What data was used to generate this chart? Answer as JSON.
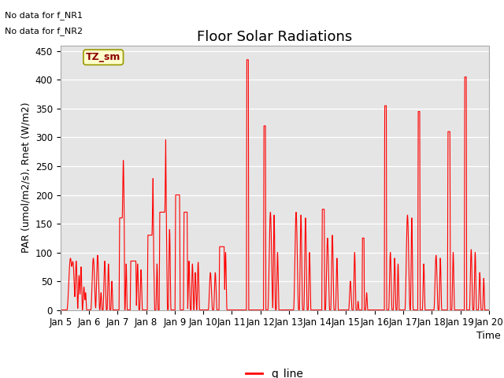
{
  "title": "Floor Solar Radiations",
  "xlabel": "Time",
  "ylabel": "PAR (umol/m2/s), Rnet (W/m2)",
  "text_no_data1": "No data for f_NR1",
  "text_no_data2": "No data for f_NR2",
  "tz_label": "TZ_sm",
  "legend_label": "q_line",
  "line_color": "#ff0000",
  "bg_color": "#e5e5e5",
  "ylim": [
    0,
    460
  ],
  "yticks": [
    0,
    50,
    100,
    150,
    200,
    250,
    300,
    350,
    400,
    450
  ],
  "title_fontsize": 13,
  "axis_fontsize": 9,
  "tick_fontsize": 8.5,
  "xtick_labels": [
    "Jan 5",
    "Jan 6",
    "Jan 7",
    "Jan 8",
    "Jan 9",
    "Jan 10",
    "Jan 11",
    "Jan 12",
    "Jan 13",
    "Jan 14",
    "Jan 15",
    "Jan 16",
    "Jan 17",
    "Jan 18",
    "Jan 19",
    "Jan 20"
  ]
}
